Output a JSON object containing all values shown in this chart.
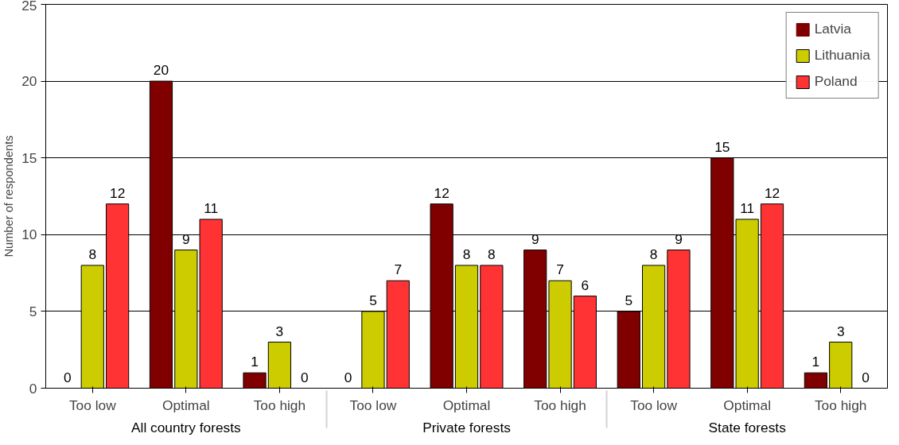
{
  "chart_data": {
    "type": "bar",
    "ylabel": "Number of respondents",
    "categories": [
      "Too low",
      "Optimal",
      "Too high",
      "Too low",
      "Optimal",
      "Too high",
      "Too low",
      "Optimal",
      "Too high"
    ],
    "annotations": [
      "All country forests",
      "Private forests",
      "State forests"
    ],
    "series": [
      {
        "name": "Latvia",
        "color": "#800000",
        "values": [
          0,
          20,
          1,
          0,
          12,
          9,
          5,
          15,
          1
        ]
      },
      {
        "name": "Lithuania",
        "color": "#cccc00",
        "values": [
          8,
          9,
          3,
          5,
          8,
          7,
          8,
          11,
          3
        ]
      },
      {
        "name": "Poland",
        "color": "#ff3333",
        "values": [
          12,
          11,
          0,
          7,
          8,
          6,
          9,
          12,
          0
        ]
      }
    ],
    "ylim": [
      0,
      25
    ],
    "yticks": [
      0,
      5,
      10,
      15,
      20,
      25
    ],
    "grid": "y",
    "legend": "top right",
    "data_labels": true
  }
}
